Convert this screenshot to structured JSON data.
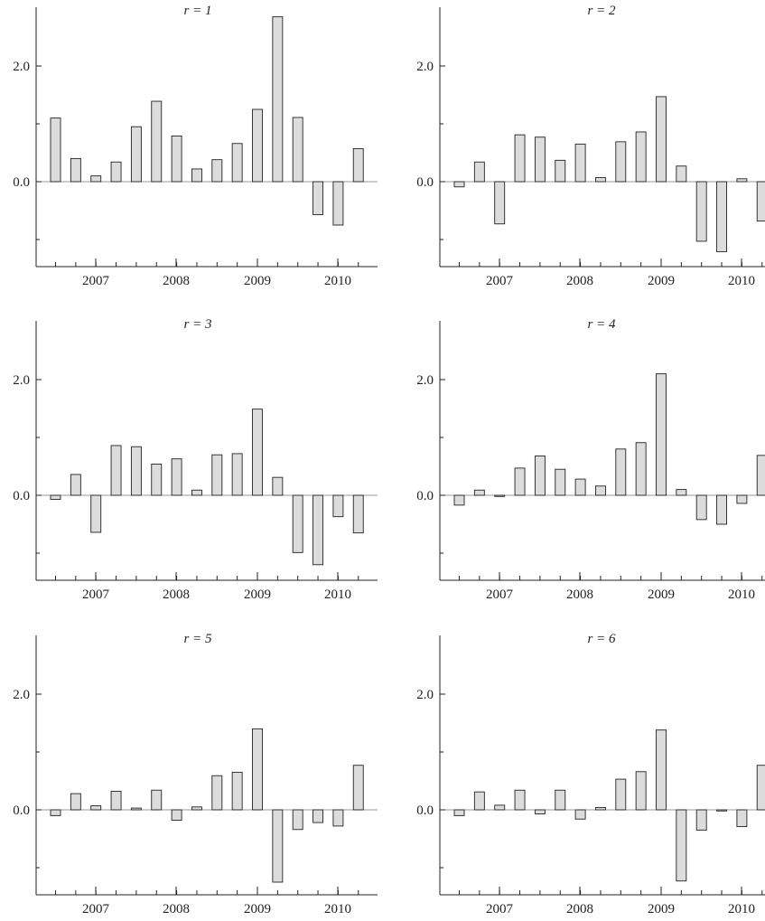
{
  "chart_data": [
    {
      "type": "bar",
      "title": "r = 1",
      "x_tick_labels": [
        "2007",
        "2008",
        "2009",
        "2010"
      ],
      "y_tick_labels": [
        "2.0",
        "0.0"
      ],
      "ylim": [
        -1.5,
        3.0
      ],
      "grid": false,
      "values": [
        1.1,
        0.4,
        0.1,
        0.34,
        0.95,
        1.39,
        0.79,
        0.22,
        0.38,
        0.66,
        1.25,
        2.85,
        1.11,
        -0.57,
        -0.75,
        0.57
      ]
    },
    {
      "type": "bar",
      "title": "r = 2",
      "x_tick_labels": [
        "2007",
        "2008",
        "2009",
        "2010"
      ],
      "y_tick_labels": [
        "2.0",
        "0.0"
      ],
      "ylim": [
        -1.5,
        3.0
      ],
      "grid": false,
      "values": [
        -0.09,
        0.34,
        -0.73,
        0.81,
        0.77,
        0.37,
        0.65,
        0.07,
        0.69,
        0.86,
        1.47,
        0.27,
        -1.03,
        -1.21,
        0.05,
        -0.68
      ]
    },
    {
      "type": "bar",
      "title": "r = 3",
      "x_tick_labels": [
        "2007",
        "2008",
        "2009",
        "2010"
      ],
      "y_tick_labels": [
        "2.0",
        "0.0"
      ],
      "ylim": [
        -1.5,
        3.0
      ],
      "grid": false,
      "values": [
        -0.07,
        0.36,
        -0.64,
        0.86,
        0.84,
        0.54,
        0.63,
        0.09,
        0.7,
        0.72,
        1.49,
        0.31,
        -0.99,
        -1.2,
        -0.37,
        -0.65
      ]
    },
    {
      "type": "bar",
      "title": "r = 4",
      "x_tick_labels": [
        "2007",
        "2008",
        "2009",
        "2010"
      ],
      "y_tick_labels": [
        "2.0",
        "0.0"
      ],
      "ylim": [
        -1.5,
        3.0
      ],
      "grid": false,
      "values": [
        -0.17,
        0.09,
        -0.02,
        0.47,
        0.68,
        0.45,
        0.28,
        0.16,
        0.8,
        0.91,
        2.1,
        0.1,
        -0.42,
        -0.5,
        -0.14,
        0.69
      ]
    },
    {
      "type": "bar",
      "title": "r = 5",
      "x_tick_labels": [
        "2007",
        "2008",
        "2009",
        "2010"
      ],
      "y_tick_labels": [
        "2.0",
        "0.0"
      ],
      "ylim": [
        -1.5,
        3.0
      ],
      "grid": false,
      "values": [
        -0.1,
        0.28,
        0.07,
        0.32,
        0.03,
        0.34,
        -0.18,
        0.05,
        0.59,
        0.65,
        1.4,
        -1.25,
        -0.34,
        -0.22,
        -0.28,
        0.77
      ]
    },
    {
      "type": "bar",
      "title": "r = 6",
      "x_tick_labels": [
        "2007",
        "2008",
        "2009",
        "2010"
      ],
      "y_tick_labels": [
        "2.0",
        "0.0"
      ],
      "ylim": [
        -1.5,
        3.0
      ],
      "grid": false,
      "values": [
        -0.1,
        0.31,
        0.08,
        0.34,
        -0.07,
        0.34,
        -0.16,
        0.04,
        0.53,
        0.66,
        1.38,
        -1.23,
        -0.35,
        -0.02,
        -0.29,
        0.77
      ]
    }
  ]
}
